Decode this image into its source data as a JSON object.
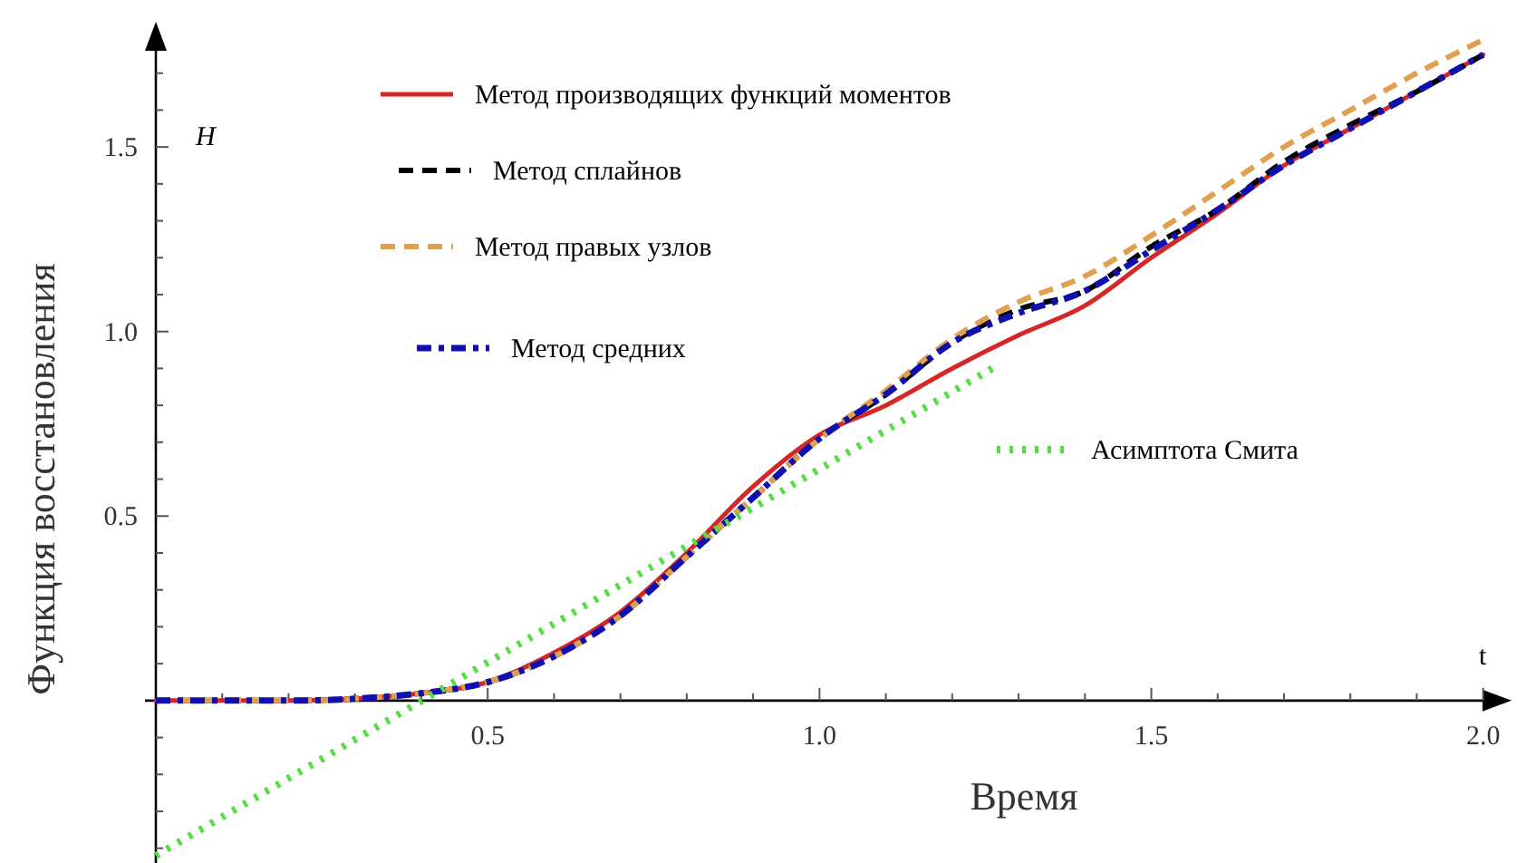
{
  "chart_data": {
    "type": "line",
    "xlabel": "Время",
    "ylabel": "Функция восстановления",
    "annotations": [
      "H",
      "t"
    ],
    "x": [
      0,
      0.1,
      0.2,
      0.3,
      0.4,
      0.5,
      0.6,
      0.7,
      0.8,
      0.9,
      1.0,
      1.1,
      1.2,
      1.3,
      1.4,
      1.5,
      1.6,
      1.7,
      1.8,
      1.9,
      2.0
    ],
    "series": [
      {
        "name": "Метод производящих функций моментов",
        "color": "#d62728",
        "line_style": "solid",
        "values": [
          0,
          0,
          0,
          0.005,
          0.02,
          0.05,
          0.13,
          0.24,
          0.4,
          0.58,
          0.72,
          0.8,
          0.9,
          0.99,
          1.07,
          1.2,
          1.32,
          1.45,
          1.55,
          1.65,
          1.75
        ]
      },
      {
        "name": "Метод сплайнов",
        "color": "#000000",
        "line_style": "dashed",
        "values": [
          0,
          0,
          0,
          0.005,
          0.02,
          0.05,
          0.12,
          0.23,
          0.39,
          0.55,
          0.71,
          0.83,
          0.97,
          1.06,
          1.11,
          1.23,
          1.33,
          1.46,
          1.56,
          1.65,
          1.75
        ]
      },
      {
        "name": "Метод правых узлов",
        "color": "#e0a050",
        "line_style": "dashed",
        "values": [
          0,
          0,
          0,
          0.005,
          0.02,
          0.05,
          0.12,
          0.23,
          0.39,
          0.55,
          0.71,
          0.84,
          0.98,
          1.08,
          1.15,
          1.26,
          1.38,
          1.5,
          1.6,
          1.7,
          1.79
        ]
      },
      {
        "name": "Метод средних",
        "color": "#1010b0",
        "line_style": "dashdot",
        "values": [
          0,
          0,
          0,
          0.005,
          0.02,
          0.05,
          0.12,
          0.23,
          0.39,
          0.55,
          0.71,
          0.83,
          0.97,
          1.05,
          1.11,
          1.22,
          1.33,
          1.45,
          1.55,
          1.65,
          1.75
        ]
      },
      {
        "name": "Асимптота Смита",
        "color": "#55dd44",
        "line_style": "dotted",
        "x": [
          0,
          1.27
        ],
        "values": [
          -0.42,
          0.91
        ]
      }
    ],
    "xlim": [
      0,
      2.01
    ],
    "ylim": [
      -0.44,
      1.8
    ],
    "xticks": [
      {
        "value": 0.1,
        "label": null
      },
      {
        "value": 0.2,
        "label": null
      },
      {
        "value": 0.3,
        "label": null
      },
      {
        "value": 0.4,
        "label": null
      },
      {
        "value": 0.5,
        "label": "0.5"
      },
      {
        "value": 0.6,
        "label": null
      },
      {
        "value": 0.7,
        "label": null
      },
      {
        "value": 0.8,
        "label": null
      },
      {
        "value": 0.9,
        "label": null
      },
      {
        "value": 1.0,
        "label": "1.0"
      },
      {
        "value": 1.1,
        "label": null
      },
      {
        "value": 1.2,
        "label": null
      },
      {
        "value": 1.3,
        "label": null
      },
      {
        "value": 1.4,
        "label": null
      },
      {
        "value": 1.5,
        "label": "1.5"
      },
      {
        "value": 1.6,
        "label": null
      },
      {
        "value": 1.7,
        "label": null
      },
      {
        "value": 1.8,
        "label": null
      },
      {
        "value": 1.9,
        "label": null
      },
      {
        "value": 2.0,
        "label": "2.0"
      }
    ],
    "yticks": [
      {
        "value": -0.4,
        "label": null
      },
      {
        "value": -0.3,
        "label": null
      },
      {
        "value": -0.2,
        "label": null
      },
      {
        "value": -0.1,
        "label": null
      },
      {
        "value": 0.1,
        "label": null
      },
      {
        "value": 0.2,
        "label": null
      },
      {
        "value": 0.3,
        "label": null
      },
      {
        "value": 0.4,
        "label": null
      },
      {
        "value": 0.5,
        "label": "0.5"
      },
      {
        "value": 0.6,
        "label": null
      },
      {
        "value": 0.7,
        "label": null
      },
      {
        "value": 0.8,
        "label": null
      },
      {
        "value": 0.9,
        "label": null
      },
      {
        "value": 1.0,
        "label": "1.0"
      },
      {
        "value": 1.1,
        "label": null
      },
      {
        "value": 1.2,
        "label": null
      },
      {
        "value": 1.3,
        "label": null
      },
      {
        "value": 1.4,
        "label": null
      },
      {
        "value": 1.5,
        "label": "1.5"
      },
      {
        "value": 1.6,
        "label": null
      },
      {
        "value": 1.7,
        "label": null
      }
    ],
    "legend": "top",
    "grid": false
  }
}
